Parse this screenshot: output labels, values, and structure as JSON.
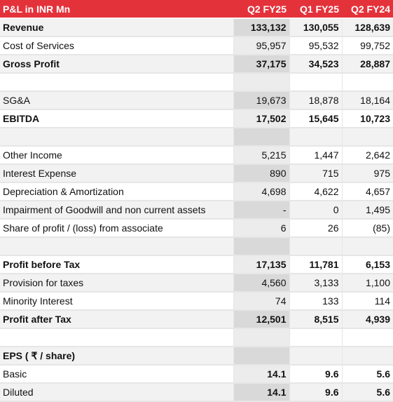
{
  "table": {
    "header": [
      "P&L in INR Mn",
      "Q2 FY25",
      "Q1 FY25",
      "Q2 FY24"
    ],
    "rows": [
      {
        "label": "Revenue",
        "values": [
          "133,132",
          "130,055",
          "128,639"
        ]
      },
      {
        "label": "Cost of Services",
        "values": [
          "95,957",
          "95,532",
          "99,752"
        ]
      },
      {
        "label": "Gross Profit",
        "values": [
          "37,175",
          "34,523",
          "28,887"
        ]
      },
      {
        "label": "SG&A",
        "values": [
          "19,673",
          "18,878",
          "18,164"
        ]
      },
      {
        "label": "EBITDA",
        "values": [
          "17,502",
          "15,645",
          "10,723"
        ]
      },
      {
        "label": "Other Income",
        "values": [
          "5,215",
          "1,447",
          "2,642"
        ]
      },
      {
        "label": "Interest Expense",
        "values": [
          "890",
          "715",
          "975"
        ]
      },
      {
        "label": "Depreciation & Amortization",
        "values": [
          "4,698",
          "4,622",
          "4,657"
        ]
      },
      {
        "label": "Impairment of Goodwill and non current assets",
        "values": [
          "-",
          "0",
          "1,495"
        ]
      },
      {
        "label": "Share of profit / (loss) from associate",
        "values": [
          "6",
          "26",
          "(85)"
        ]
      },
      {
        "label": "Profit before Tax",
        "values": [
          "17,135",
          "11,781",
          "6,153"
        ]
      },
      {
        "label": "Provision for taxes",
        "values": [
          "4,560",
          "3,133",
          "1,100"
        ]
      },
      {
        "label": "Minority Interest",
        "values": [
          "74",
          "133",
          "114"
        ]
      },
      {
        "label": "Profit after Tax",
        "values": [
          "12,501",
          "8,515",
          "4,939"
        ]
      },
      {
        "label": "EPS ( ₹ / share)",
        "values": []
      },
      {
        "label": "Basic",
        "values": [
          "14.1",
          "9.6",
          "5.6"
        ]
      },
      {
        "label": "Diluted",
        "values": [
          "14.1",
          "9.6",
          "5.6"
        ]
      }
    ]
  }
}
